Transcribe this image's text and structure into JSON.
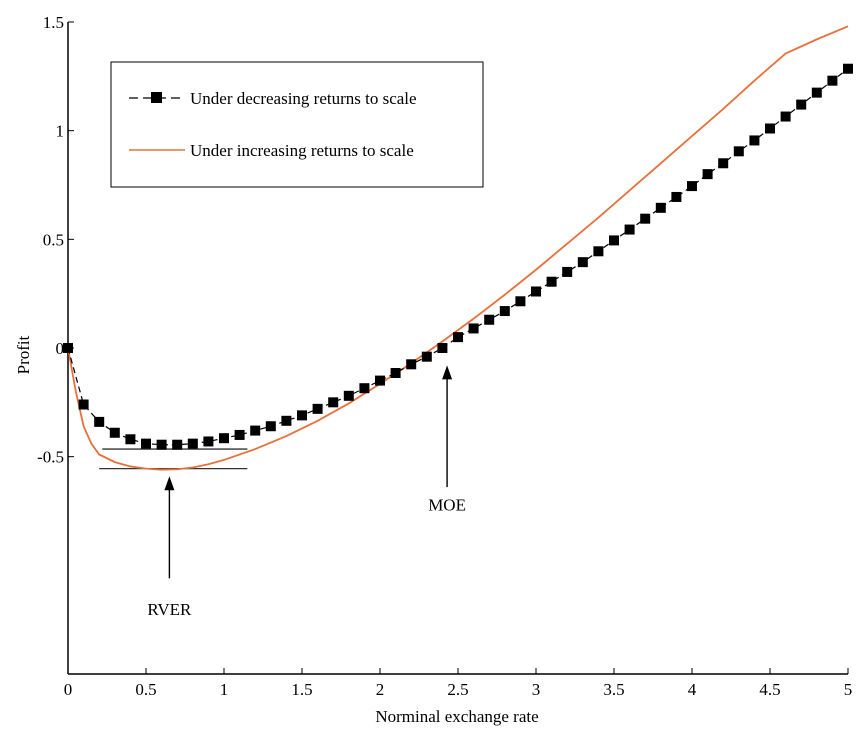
{
  "chart_data": {
    "type": "line",
    "title": "",
    "xlabel": "Norminal exchange rate",
    "ylabel": "Profit",
    "xlim": [
      0,
      5
    ],
    "ylim": [
      -1.5,
      1.5
    ],
    "x_ticks": [
      0,
      0.5,
      1,
      1.5,
      2,
      2.5,
      3,
      3.5,
      4,
      4.5,
      5
    ],
    "x_tick_labels": [
      "0",
      "0.5",
      "1",
      "1.5",
      "2",
      "2.5",
      "3",
      "3.5",
      "4",
      "4.5",
      "5"
    ],
    "y_ticks": [
      -0.5,
      0,
      0.5,
      1,
      1.5
    ],
    "y_tick_labels": [
      "-0.5",
      "0",
      "0.5",
      "1",
      "1.5"
    ],
    "grid": false,
    "legend_position": "top-left",
    "series": [
      {
        "name": "Under decreasing returns to scale",
        "style": "dashed-square-markers",
        "color": "#000000",
        "x": [
          0,
          0.1,
          0.2,
          0.3,
          0.4,
          0.5,
          0.6,
          0.7,
          0.8,
          0.9,
          1.0,
          1.1,
          1.2,
          1.3,
          1.4,
          1.5,
          1.6,
          1.7,
          1.8,
          1.9,
          2.0,
          2.1,
          2.2,
          2.3,
          2.4,
          2.5,
          2.6,
          2.7,
          2.8,
          2.9,
          3.0,
          3.1,
          3.2,
          3.3,
          3.4,
          3.5,
          3.6,
          3.7,
          3.8,
          3.9,
          4.0,
          4.1,
          4.2,
          4.3,
          4.4,
          4.5,
          4.6,
          4.7,
          4.8,
          4.9,
          5.0
        ],
        "y": [
          0,
          -0.26,
          -0.34,
          -0.39,
          -0.42,
          -0.44,
          -0.445,
          -0.445,
          -0.44,
          -0.43,
          -0.415,
          -0.4,
          -0.38,
          -0.36,
          -0.335,
          -0.31,
          -0.28,
          -0.25,
          -0.22,
          -0.185,
          -0.15,
          -0.115,
          -0.075,
          -0.04,
          0.0,
          0.05,
          0.09,
          0.13,
          0.17,
          0.215,
          0.26,
          0.305,
          0.35,
          0.395,
          0.445,
          0.495,
          0.545,
          0.595,
          0.645,
          0.695,
          0.745,
          0.8,
          0.85,
          0.905,
          0.955,
          1.01,
          1.065,
          1.12,
          1.175,
          1.23,
          1.285
        ]
      },
      {
        "name": "Under increasing returns to scale",
        "style": "solid",
        "color": "#e8703a",
        "x": [
          0,
          0.05,
          0.1,
          0.15,
          0.2,
          0.3,
          0.4,
          0.5,
          0.6,
          0.7,
          0.8,
          0.9,
          1.0,
          1.2,
          1.4,
          1.6,
          1.8,
          2.0,
          2.2,
          2.4,
          2.6,
          2.8,
          3.0,
          3.2,
          3.4,
          3.6,
          3.8,
          4.0,
          4.2,
          4.4,
          4.6,
          4.8,
          5.0
        ],
        "y": [
          0,
          -0.2,
          -0.36,
          -0.44,
          -0.49,
          -0.525,
          -0.545,
          -0.555,
          -0.56,
          -0.558,
          -0.55,
          -0.535,
          -0.515,
          -0.465,
          -0.405,
          -0.335,
          -0.255,
          -0.165,
          -0.07,
          0.03,
          0.135,
          0.245,
          0.36,
          0.48,
          0.6,
          0.725,
          0.85,
          0.975,
          1.1,
          1.23,
          1.355,
          1.42,
          1.48
        ]
      }
    ],
    "annotations": [
      {
        "text": "RVER",
        "arrow_x": 0.65,
        "arrow_y_from": -1.06,
        "arrow_y_to": -0.59,
        "label_y": -1.2
      },
      {
        "text": "MOE",
        "arrow_x": 2.43,
        "arrow_y_from": -0.64,
        "arrow_y_to": -0.08,
        "label_y": -0.72
      }
    ],
    "reference_lines": [
      {
        "x": [
          0.22,
          1.15
        ],
        "y": -0.465
      },
      {
        "x": [
          0.2,
          1.15
        ],
        "y": -0.555
      }
    ]
  }
}
